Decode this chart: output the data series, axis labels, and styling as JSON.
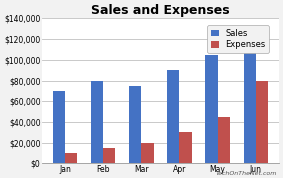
{
  "title": "Sales and Expenses",
  "categories": [
    "Jan",
    "Feb",
    "Mar",
    "Apr",
    "May",
    "Jun"
  ],
  "sales": [
    70000,
    80000,
    75000,
    90000,
    105000,
    130000
  ],
  "expenses": [
    10000,
    15000,
    20000,
    30000,
    45000,
    80000
  ],
  "sales_color": "#4472C4",
  "expenses_color": "#C0504D",
  "ylim": [
    0,
    140000
  ],
  "yticks": [
    0,
    20000,
    40000,
    60000,
    80000,
    100000,
    120000,
    140000
  ],
  "legend_labels": [
    "Sales",
    "Expenses"
  ],
  "fig_bg_color": "#F2F2F2",
  "plot_bg_color": "#FFFFFF",
  "grid_color": "#C0C0C0",
  "watermark": "TechOnTheNet.com",
  "title_fontsize": 9,
  "tick_fontsize": 5.5,
  "legend_fontsize": 6
}
